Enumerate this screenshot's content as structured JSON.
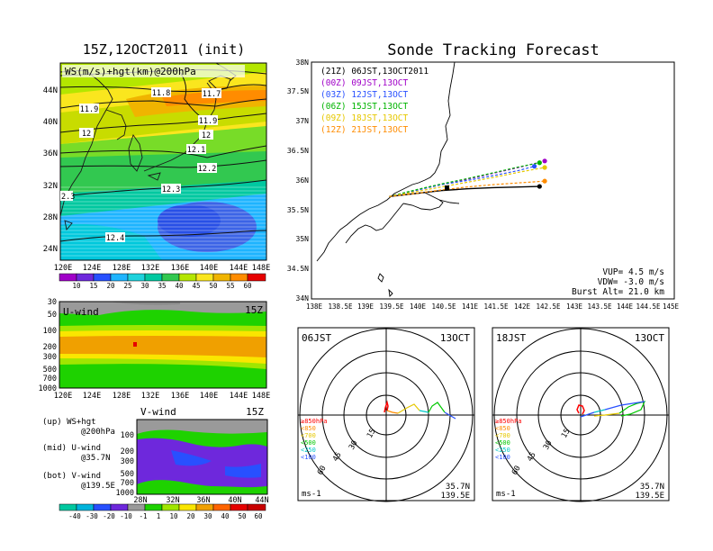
{
  "left_title": "15Z,12OCT2011 (init)",
  "right_title": "Sonde Tracking Forecast",
  "upper_map": {
    "label": "WS(m/s)+hgt(km)@200hPa",
    "y_ticks": [
      "44N",
      "40N",
      "36N",
      "32N",
      "28N",
      "24N"
    ],
    "x_ticks": [
      "120E",
      "124E",
      "128E",
      "132E",
      "136E",
      "140E",
      "144E",
      "148E"
    ],
    "contour_labels": [
      "11.8",
      "11.7",
      "11.9",
      "12",
      "11.9",
      "12",
      "12.1",
      "12.2",
      "12.3",
      "2.3",
      "12.4"
    ]
  },
  "ws_colorbar": {
    "labels": [
      "10",
      "15",
      "20",
      "25",
      "30",
      "35",
      "40",
      "45",
      "50",
      "55",
      "60"
    ]
  },
  "uwind": {
    "label": "U-wind",
    "time": "15Z",
    "y_ticks": [
      "30",
      "50",
      "100",
      "200",
      "300",
      "500",
      "700",
      "1000"
    ],
    "x_ticks": [
      "120E",
      "124E",
      "128E",
      "132E",
      "136E",
      "140E",
      "144E",
      "148E"
    ]
  },
  "vwind": {
    "label": "V-wind",
    "time": "15Z",
    "y_ticks": [
      "100",
      "200",
      "300",
      "500",
      "700",
      "1000"
    ],
    "x_ticks": [
      "28N",
      "32N",
      "36N",
      "40N",
      "44N"
    ]
  },
  "notes": [
    {
      "line1": "(up) WS+hgt",
      "line2": "@200hPa"
    },
    {
      "line1": "(mid) U-wind",
      "line2": "@35.7N"
    },
    {
      "line1": "(bot) V-wind",
      "line2": "@139.5E"
    }
  ],
  "wind_colorbar": {
    "labels": [
      "-40",
      "-30",
      "-20",
      "-10",
      "-1",
      "1",
      "10",
      "20",
      "30",
      "40",
      "50",
      "60"
    ]
  },
  "track_map": {
    "legend": [
      {
        "text": "(21Z) 06JST,13OCT2011",
        "color": "#000000"
      },
      {
        "text": "(00Z) 09JST,13OCT",
        "color": "#a000c8"
      },
      {
        "text": "(03Z) 12JST,13OCT",
        "color": "#2850ff"
      },
      {
        "text": "(06Z) 15JST,13OCT",
        "color": "#00b400"
      },
      {
        "text": "(09Z) 18JST,13OCT",
        "color": "#e6c800"
      },
      {
        "text": "(12Z) 21JST,13OCT",
        "color": "#ff8c00"
      }
    ],
    "y_ticks": [
      "38N",
      "37.5N",
      "37N",
      "36.5N",
      "36N",
      "35.5N",
      "35N",
      "34.5N",
      "34N"
    ],
    "x_ticks": [
      "138E",
      "138.5E",
      "139E",
      "139.5E",
      "140E",
      "140.5E",
      "141E",
      "141.5E",
      "142E",
      "142.5E",
      "143E",
      "143.5E",
      "144E",
      "144.5E",
      "145E"
    ],
    "params": [
      "VUP= 4.5 m/s",
      "VDW= -3.0 m/s",
      "Burst Alt= 21.0 km"
    ]
  },
  "hodographs": [
    {
      "time": "06JST",
      "date": "13OCT",
      "unit": "ms-1",
      "loc1": "35.7N",
      "loc2": "139.5E",
      "rings": [
        "15",
        "30",
        "45",
        "60"
      ],
      "levels": [
        {
          "text": "≥850hPa",
          "color": "#ff0000"
        },
        {
          "text": "<850",
          "color": "#ff8c00"
        },
        {
          "text": "<700",
          "color": "#e6c800"
        },
        {
          "text": "<500",
          "color": "#00c800"
        },
        {
          "text": "<250",
          "color": "#00c8c8"
        },
        {
          "text": "<100",
          "color": "#2850ff"
        }
      ]
    },
    {
      "time": "18JST",
      "date": "13OCT",
      "unit": "ms-1",
      "loc1": "35.7N",
      "loc2": "139.5E",
      "rings": [
        "15",
        "30",
        "45",
        "60"
      ],
      "levels": [
        {
          "text": "≥850hPa",
          "color": "#ff0000"
        },
        {
          "text": "<850",
          "color": "#ff8c00"
        },
        {
          "text": "<700",
          "color": "#e6c800"
        },
        {
          "text": "<500",
          "color": "#00c800"
        },
        {
          "text": "<250",
          "color": "#00c8c8"
        },
        {
          "text": "<100",
          "color": "#2850ff"
        }
      ]
    }
  ],
  "chart_data": [
    {
      "type": "heatmap",
      "title": "15Z,12OCT2011 (init)",
      "variable": "WS(m/s)+hgt(km)@200hPa",
      "x_range": [
        "120E",
        "148E"
      ],
      "y_range": [
        "23N",
        "47N"
      ],
      "colorbar": [
        10,
        15,
        20,
        25,
        30,
        35,
        40,
        45,
        50,
        55,
        60
      ],
      "contour_values_km": [
        11.7,
        11.8,
        11.9,
        12,
        12.1,
        12.2,
        12.3,
        12.4
      ]
    },
    {
      "type": "heatmap",
      "title": "U-wind",
      "x_range": [
        "120E",
        "148E"
      ],
      "y_levels_hPa": [
        30,
        50,
        100,
        200,
        300,
        500,
        700,
        1000
      ],
      "colorbar": [
        -40,
        -30,
        -20,
        -10,
        -1,
        1,
        10,
        20,
        30,
        40,
        50,
        60
      ]
    },
    {
      "type": "heatmap",
      "title": "V-wind",
      "x_range": [
        "28N",
        "44N"
      ],
      "y_levels_hPa": [
        100,
        200,
        300,
        500,
        700,
        1000
      ],
      "colorbar": [
        -40,
        -30,
        -20,
        -10,
        -1,
        1,
        10,
        20,
        30,
        40,
        50,
        60
      ]
    },
    {
      "type": "line",
      "title": "Sonde Tracking Forecast",
      "xlim": [
        138,
        145
      ],
      "ylim": [
        34,
        38
      ],
      "series": [
        {
          "name": "(21Z) 06JST,13OCT2011",
          "color": "#000000",
          "x": [
            139.5,
            140.0,
            140.5,
            141.0,
            141.5,
            142.0,
            142.4
          ],
          "y": [
            35.73,
            35.78,
            35.83,
            35.86,
            35.88,
            35.89,
            35.9
          ]
        },
        {
          "name": "(00Z) 09JST,13OCT",
          "color": "#a000c8",
          "x": [
            139.5,
            140.0,
            140.5,
            141.0,
            141.5,
            142.0,
            142.5
          ],
          "y": [
            35.73,
            35.83,
            35.93,
            36.02,
            36.12,
            36.22,
            36.33
          ]
        },
        {
          "name": "(03Z) 12JST,13OCT",
          "color": "#2850ff",
          "x": [
            139.5,
            140.0,
            140.5,
            141.0,
            141.5,
            142.0,
            142.3
          ],
          "y": [
            35.73,
            35.83,
            35.93,
            36.0,
            36.08,
            36.17,
            36.24
          ]
        },
        {
          "name": "(06Z) 15JST,13OCT",
          "color": "#00b400",
          "x": [
            139.5,
            140.0,
            140.5,
            141.0,
            141.5,
            142.0,
            142.4
          ],
          "y": [
            35.73,
            35.84,
            35.94,
            36.03,
            36.13,
            36.23,
            36.3
          ]
        },
        {
          "name": "(09Z) 18JST,13OCT",
          "color": "#e6c800",
          "x": [
            139.5,
            140.0,
            140.5,
            141.0,
            141.5,
            142.0,
            142.5
          ],
          "y": [
            35.73,
            35.81,
            35.89,
            35.97,
            36.05,
            36.14,
            36.22
          ]
        },
        {
          "name": "(12Z) 21JST,13OCT",
          "color": "#ff8c00",
          "x": [
            139.5,
            140.0,
            140.5,
            141.0,
            141.5,
            142.0,
            142.5
          ],
          "y": [
            35.73,
            35.78,
            35.84,
            35.89,
            35.93,
            35.96,
            35.99
          ]
        }
      ]
    }
  ]
}
